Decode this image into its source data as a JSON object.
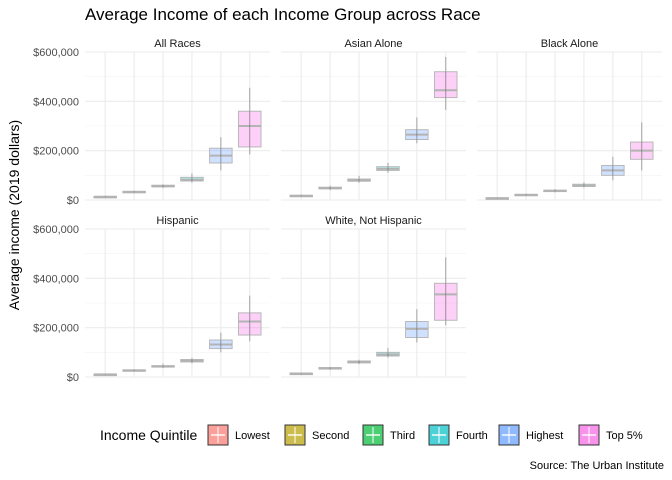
{
  "chart_data": {
    "type": "boxplot",
    "title": "Average Income of each Income Group across Race",
    "ylabel": "Average income (2019 dollars)",
    "xlabel": "",
    "caption": "Source: The Urban Institute",
    "ylim": [
      0,
      600000
    ],
    "y_ticks": [
      0,
      200000,
      400000,
      600000
    ],
    "y_tick_labels": [
      "$0",
      "$200,000",
      "$400,000",
      "$600,000"
    ],
    "grid": true,
    "legend": {
      "title": "Income Quintile",
      "position": "bottom",
      "entries": [
        "Lowest",
        "Second",
        "Third",
        "Fourth",
        "Highest",
        "Top 5%"
      ]
    },
    "colors": {
      "Lowest": "#F8766D",
      "Second": "#B79F00",
      "Third": "#00BA38",
      "Fourth": "#00BFC4",
      "Highest": "#619CFF",
      "Top 5%": "#F564E3"
    },
    "facets": [
      {
        "name": "All Races",
        "boxes": [
          {
            "group": "Lowest",
            "min": 10000,
            "q1": 12000,
            "median": 13000,
            "q3": 14500,
            "max": 17000
          },
          {
            "group": "Second",
            "min": 27000,
            "q1": 31000,
            "median": 33000,
            "q3": 35000,
            "max": 38000
          },
          {
            "group": "Third",
            "min": 48000,
            "q1": 53000,
            "median": 57000,
            "q3": 60000,
            "max": 64000
          },
          {
            "group": "Fourth",
            "min": 70000,
            "q1": 77000,
            "median": 82000,
            "q3": 92000,
            "max": 108000
          },
          {
            "group": "Highest",
            "min": 120000,
            "q1": 150000,
            "median": 180000,
            "q3": 210000,
            "max": 255000
          },
          {
            "group": "Top 5%",
            "min": 185000,
            "q1": 215000,
            "median": 300000,
            "q3": 360000,
            "max": 455000
          }
        ]
      },
      {
        "name": "Asian Alone",
        "boxes": [
          {
            "group": "Lowest",
            "min": 12000,
            "q1": 15000,
            "median": 17000,
            "q3": 19000,
            "max": 22000
          },
          {
            "group": "Second",
            "min": 40000,
            "q1": 45000,
            "median": 48000,
            "q3": 52000,
            "max": 58000
          },
          {
            "group": "Third",
            "min": 70000,
            "q1": 76000,
            "median": 80000,
            "q3": 85000,
            "max": 98000
          },
          {
            "group": "Fourth",
            "min": 110000,
            "q1": 120000,
            "median": 126000,
            "q3": 135000,
            "max": 150000
          },
          {
            "group": "Highest",
            "min": 230000,
            "q1": 245000,
            "median": 265000,
            "q3": 285000,
            "max": 335000
          },
          {
            "group": "Top 5%",
            "min": 365000,
            "q1": 415000,
            "median": 445000,
            "q3": 520000,
            "max": 580000
          }
        ]
      },
      {
        "name": "Black Alone",
        "boxes": [
          {
            "group": "Lowest",
            "min": 5000,
            "q1": 6500,
            "median": 7500,
            "q3": 8500,
            "max": 10000
          },
          {
            "group": "Second",
            "min": 16000,
            "q1": 19000,
            "median": 21000,
            "q3": 23000,
            "max": 25000
          },
          {
            "group": "Third",
            "min": 31000,
            "q1": 35000,
            "median": 37000,
            "q3": 40000,
            "max": 44000
          },
          {
            "group": "Fourth",
            "min": 50000,
            "q1": 55000,
            "median": 58000,
            "q3": 64000,
            "max": 72000
          },
          {
            "group": "Highest",
            "min": 80000,
            "q1": 100000,
            "median": 120000,
            "q3": 140000,
            "max": 175000
          },
          {
            "group": "Top 5%",
            "min": 120000,
            "q1": 165000,
            "median": 200000,
            "q3": 235000,
            "max": 315000
          }
        ]
      },
      {
        "name": "Hispanic",
        "boxes": [
          {
            "group": "Lowest",
            "min": 8000,
            "q1": 9500,
            "median": 10500,
            "q3": 11500,
            "max": 13000
          },
          {
            "group": "Second",
            "min": 22000,
            "q1": 25000,
            "median": 27000,
            "q3": 29000,
            "max": 31000
          },
          {
            "group": "Third",
            "min": 36000,
            "q1": 40000,
            "median": 43000,
            "q3": 46000,
            "max": 54000
          },
          {
            "group": "Fourth",
            "min": 55000,
            "q1": 61000,
            "median": 66000,
            "q3": 71000,
            "max": 78000
          },
          {
            "group": "Highest",
            "min": 100000,
            "q1": 115000,
            "median": 132000,
            "q3": 150000,
            "max": 180000
          },
          {
            "group": "Top 5%",
            "min": 145000,
            "q1": 170000,
            "median": 225000,
            "q3": 260000,
            "max": 330000
          }
        ]
      },
      {
        "name": "White, Not Hispanic",
        "boxes": [
          {
            "group": "Lowest",
            "min": 10000,
            "q1": 12500,
            "median": 14000,
            "q3": 15500,
            "max": 17000
          },
          {
            "group": "Second",
            "min": 29000,
            "q1": 33000,
            "median": 36000,
            "q3": 38000,
            "max": 41000
          },
          {
            "group": "Third",
            "min": 52000,
            "q1": 57000,
            "median": 61000,
            "q3": 65000,
            "max": 70000
          },
          {
            "group": "Fourth",
            "min": 78000,
            "q1": 85000,
            "median": 91000,
            "q3": 100000,
            "max": 118000
          },
          {
            "group": "Highest",
            "min": 140000,
            "q1": 160000,
            "median": 195000,
            "q3": 225000,
            "max": 275000
          },
          {
            "group": "Top 5%",
            "min": 210000,
            "q1": 230000,
            "median": 335000,
            "q3": 380000,
            "max": 485000
          }
        ]
      }
    ]
  }
}
